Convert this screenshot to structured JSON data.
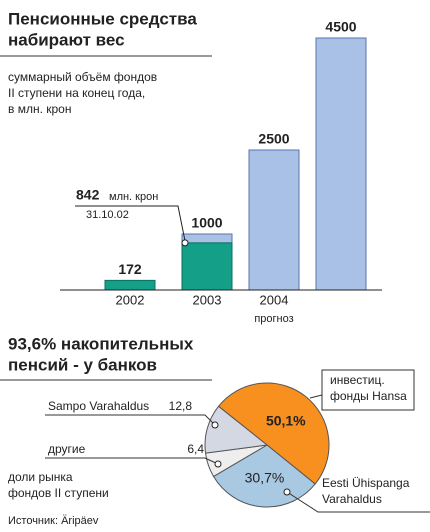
{
  "chart_data": [
    {
      "type": "bar",
      "title": [
        "Пенсионные средства",
        "набирают вес"
      ],
      "subtitle": [
        "суммарный объём фондов",
        "II ступени на конец года,",
        "в млн. крон"
      ],
      "categories": [
        "2002",
        "2003",
        "2004",
        null
      ],
      "category_note": "прогноз",
      "values": [
        172,
        1000,
        2500,
        4500
      ],
      "colors": [
        "#14a088",
        "#a9c1e6",
        "#a9c1e6",
        "#a9c1e6"
      ],
      "annotation": {
        "value": 842,
        "unit": "млн. крон",
        "date": "31.10.02",
        "color": "#14a088"
      }
    },
    {
      "type": "pie",
      "title": [
        "93,6% накопительных",
        "пенсий - у банков"
      ],
      "categories": [
        [
          "инвестиц.",
          "фонды Hansa"
        ],
        [
          "Eesti Ühispanga",
          "Varahaldus"
        ],
        [
          "другие"
        ],
        [
          "Sampo Varahaldus"
        ]
      ],
      "values": [
        50.1,
        30.7,
        6.4,
        12.8
      ],
      "value_labels": [
        "50,1%",
        "30,7%",
        "6,4",
        "12,8"
      ],
      "colors": [
        "#f7901e",
        "#a9c8e2",
        "#eeeeee",
        "#d4d8e2"
      ],
      "note": [
        "доли рынка",
        "фондов II ступени"
      ]
    }
  ],
  "source": "Источник: Äripäev"
}
